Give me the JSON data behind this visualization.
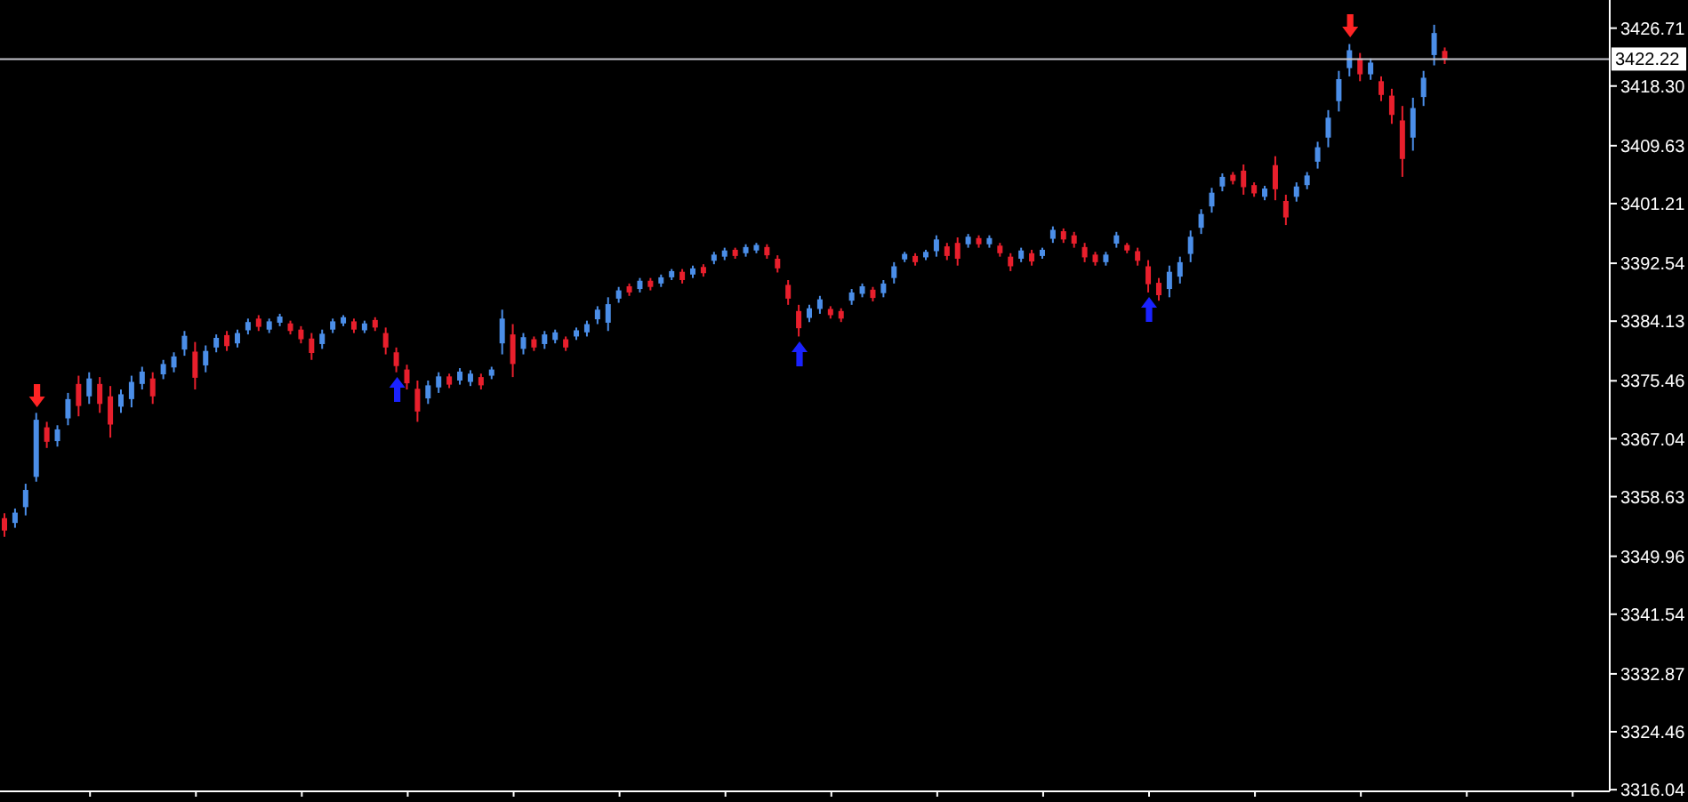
{
  "chart_data": {
    "type": "candlestick",
    "categories": [
      null,
      null,
      null,
      null,
      null,
      null,
      null,
      null,
      null,
      null,
      null,
      null,
      null,
      null,
      null,
      null,
      null,
      null,
      null,
      null,
      null,
      null,
      null,
      null,
      null,
      null,
      null,
      null,
      null,
      null,
      null,
      null,
      null,
      null,
      null,
      null,
      null,
      null,
      null,
      null,
      null,
      null,
      null,
      null,
      null,
      null,
      null,
      null,
      null,
      null,
      null,
      null,
      null,
      null,
      null,
      null,
      null,
      null,
      null,
      null,
      null,
      null,
      null,
      null,
      null,
      null,
      null,
      null,
      null,
      null,
      null,
      null,
      null,
      null,
      null,
      null,
      null,
      null,
      null,
      null,
      null,
      null,
      null,
      null,
      null,
      null,
      null,
      null,
      null,
      null,
      null,
      null,
      null,
      null,
      null,
      null,
      null,
      null,
      null,
      null,
      null,
      null,
      null,
      null,
      null,
      null,
      null,
      null,
      null,
      null,
      null,
      null,
      null,
      null,
      null,
      null,
      null,
      null,
      null,
      null,
      null,
      null,
      null,
      null,
      null,
      null,
      null,
      null,
      null,
      null,
      null,
      null,
      null,
      null,
      null,
      null,
      null,
      null,
      null,
      null,
      null,
      null,
      null,
      null,
      null,
      null,
      null,
      null,
      null,
      null,
      null,
      null
    ],
    "ohlc": [
      [
        3355.5,
        3356.2,
        3352.8,
        3353.7
      ],
      [
        3354.8,
        3356.9,
        3354.1,
        3356.3
      ],
      [
        3357.1,
        3360.5,
        3355.9,
        3359.6
      ],
      [
        3361.5,
        3370.8,
        3360.8,
        3369.8
      ],
      [
        3368.7,
        3369.5,
        3365.7,
        3366.6
      ],
      [
        3366.7,
        3369.0,
        3365.9,
        3368.4
      ],
      [
        3370.0,
        3373.7,
        3369.0,
        3372.8
      ],
      [
        3375.0,
        3376.2,
        3370.3,
        3371.8
      ],
      [
        3373.2,
        3376.7,
        3372.1,
        3375.8
      ],
      [
        3375.0,
        3376.0,
        3370.8,
        3372.1
      ],
      [
        3373.2,
        3374.7,
        3367.2,
        3369.1
      ],
      [
        3371.7,
        3374.2,
        3370.8,
        3373.5
      ],
      [
        3372.8,
        3376.2,
        3371.6,
        3375.3
      ],
      [
        3375.0,
        3377.5,
        3374.2,
        3376.8
      ],
      [
        3375.8,
        3376.7,
        3372.1,
        3373.2
      ],
      [
        3376.4,
        3378.5,
        3375.7,
        3377.9
      ],
      [
        3377.4,
        3379.6,
        3376.7,
        3379.0
      ],
      [
        3380.0,
        3382.7,
        3379.1,
        3382.0
      ],
      [
        3379.7,
        3381.1,
        3374.2,
        3375.9
      ],
      [
        3377.7,
        3380.6,
        3376.7,
        3379.8
      ],
      [
        3380.3,
        3382.2,
        3379.6,
        3381.7
      ],
      [
        3382.1,
        3382.7,
        3379.8,
        3380.5
      ],
      [
        3380.9,
        3382.9,
        3380.3,
        3382.4
      ],
      [
        3382.8,
        3384.5,
        3382.2,
        3384.0
      ],
      [
        3384.5,
        3385.0,
        3382.7,
        3383.3
      ],
      [
        3382.9,
        3384.5,
        3382.4,
        3384.1
      ],
      [
        3383.9,
        3385.2,
        3383.4,
        3384.8
      ],
      [
        3383.8,
        3384.2,
        3382.2,
        3382.7
      ],
      [
        3382.9,
        3383.4,
        3380.9,
        3381.5
      ],
      [
        3381.6,
        3382.4,
        3378.5,
        3379.5
      ],
      [
        3380.8,
        3382.9,
        3380.1,
        3382.3
      ],
      [
        3382.9,
        3384.5,
        3382.4,
        3384.1
      ],
      [
        3383.8,
        3385.0,
        3383.4,
        3384.7
      ],
      [
        3384.1,
        3384.5,
        3382.4,
        3382.9
      ],
      [
        3382.8,
        3384.2,
        3382.4,
        3383.8
      ],
      [
        3384.3,
        3384.7,
        3382.7,
        3383.2
      ],
      [
        3382.4,
        3383.2,
        3379.3,
        3380.3
      ],
      [
        3379.6,
        3380.3,
        3376.7,
        3377.6
      ],
      [
        3377.1,
        3377.8,
        3374.2,
        3375.1
      ],
      [
        3374.3,
        3375.5,
        3369.5,
        3371.0
      ],
      [
        3372.9,
        3375.5,
        3372.1,
        3374.8
      ],
      [
        3374.5,
        3376.7,
        3373.7,
        3376.1
      ],
      [
        3376.1,
        3376.5,
        3374.4,
        3374.9
      ],
      [
        3375.5,
        3377.3,
        3374.9,
        3376.8
      ],
      [
        3375.3,
        3377.0,
        3374.7,
        3376.5
      ],
      [
        3376.0,
        3376.5,
        3374.2,
        3374.8
      ],
      [
        3376.2,
        3377.5,
        3375.7,
        3377.1
      ],
      [
        3380.9,
        3385.8,
        3379.3,
        3384.5
      ],
      [
        3382.2,
        3383.7,
        3376.0,
        3377.9
      ],
      [
        3380.1,
        3382.4,
        3379.3,
        3381.8
      ],
      [
        3381.5,
        3381.9,
        3379.8,
        3380.3
      ],
      [
        3380.8,
        3382.7,
        3380.1,
        3382.2
      ],
      [
        3381.4,
        3382.9,
        3380.9,
        3382.5
      ],
      [
        3381.5,
        3381.9,
        3379.8,
        3380.3
      ],
      [
        3381.9,
        3383.2,
        3381.4,
        3382.8
      ],
      [
        3382.5,
        3384.2,
        3381.9,
        3383.7
      ],
      [
        3384.4,
        3386.3,
        3383.7,
        3385.8
      ],
      [
        3383.9,
        3387.6,
        3382.7,
        3386.6
      ],
      [
        3387.4,
        3389.1,
        3386.8,
        3388.6
      ],
      [
        3389.2,
        3389.6,
        3387.8,
        3388.3
      ],
      [
        3388.8,
        3390.4,
        3388.3,
        3390.0
      ],
      [
        3390.0,
        3390.4,
        3388.6,
        3389.1
      ],
      [
        3389.6,
        3390.9,
        3389.1,
        3390.5
      ],
      [
        3390.5,
        3391.7,
        3390.1,
        3391.4
      ],
      [
        3391.3,
        3391.7,
        3389.6,
        3390.1
      ],
      [
        3390.9,
        3392.2,
        3390.4,
        3391.8
      ],
      [
        3392.0,
        3392.4,
        3390.6,
        3391.1
      ],
      [
        3392.9,
        3394.2,
        3392.4,
        3393.8
      ],
      [
        3393.5,
        3394.8,
        3393.0,
        3394.4
      ],
      [
        3394.5,
        3394.8,
        3393.2,
        3393.6
      ],
      [
        3394.0,
        3395.3,
        3393.5,
        3394.9
      ],
      [
        3394.4,
        3395.5,
        3394.0,
        3395.2
      ],
      [
        3394.9,
        3395.3,
        3393.2,
        3393.7
      ],
      [
        3393.2,
        3393.7,
        3391.2,
        3391.8
      ],
      [
        3389.4,
        3390.1,
        3386.5,
        3387.4
      ],
      [
        3385.6,
        3386.5,
        3381.9,
        3383.1
      ],
      [
        3384.6,
        3386.5,
        3384.0,
        3386.0
      ],
      [
        3385.9,
        3387.8,
        3385.2,
        3387.3
      ],
      [
        3385.9,
        3386.3,
        3384.5,
        3385.0
      ],
      [
        3385.6,
        3386.0,
        3384.0,
        3384.5
      ],
      [
        3387.1,
        3388.8,
        3386.5,
        3388.3
      ],
      [
        3388.1,
        3389.6,
        3387.6,
        3389.2
      ],
      [
        3388.7,
        3389.1,
        3387.0,
        3387.5
      ],
      [
        3388.2,
        3390.1,
        3387.6,
        3389.6
      ],
      [
        3390.4,
        3392.7,
        3389.6,
        3392.1
      ],
      [
        3393.1,
        3394.2,
        3392.7,
        3393.9
      ],
      [
        3393.6,
        3394.0,
        3392.2,
        3392.7
      ],
      [
        3393.4,
        3394.5,
        3393.0,
        3394.2
      ],
      [
        3394.3,
        3396.6,
        3393.5,
        3396.0
      ],
      [
        3395.0,
        3395.5,
        3393.0,
        3393.6
      ],
      [
        3395.5,
        3396.3,
        3392.2,
        3393.2
      ],
      [
        3395.3,
        3396.8,
        3394.8,
        3396.4
      ],
      [
        3396.2,
        3396.6,
        3394.8,
        3395.3
      ],
      [
        3395.3,
        3396.6,
        3394.8,
        3396.2
      ],
      [
        3395.1,
        3395.5,
        3393.5,
        3394.0
      ],
      [
        3393.5,
        3394.0,
        3391.4,
        3392.1
      ],
      [
        3393.2,
        3394.8,
        3392.7,
        3394.4
      ],
      [
        3394.0,
        3394.5,
        3392.2,
        3392.8
      ],
      [
        3393.6,
        3394.8,
        3393.2,
        3394.5
      ],
      [
        3396.1,
        3397.9,
        3395.5,
        3397.4
      ],
      [
        3397.2,
        3397.6,
        3395.5,
        3396.0
      ],
      [
        3396.6,
        3397.1,
        3394.8,
        3395.4
      ],
      [
        3394.9,
        3395.5,
        3392.7,
        3393.4
      ],
      [
        3393.8,
        3394.2,
        3392.2,
        3392.7
      ],
      [
        3392.7,
        3394.2,
        3392.2,
        3393.8
      ],
      [
        3395.4,
        3397.1,
        3394.8,
        3396.6
      ],
      [
        3395.2,
        3395.5,
        3394.0,
        3394.4
      ],
      [
        3394.3,
        3394.8,
        3392.2,
        3392.9
      ],
      [
        3392.1,
        3393.0,
        3388.3,
        3389.5
      ],
      [
        3389.7,
        3390.4,
        3387.1,
        3387.9
      ],
      [
        3388.8,
        3392.2,
        3387.6,
        3391.3
      ],
      [
        3390.6,
        3393.5,
        3389.6,
        3392.7
      ],
      [
        3393.9,
        3397.3,
        3392.7,
        3396.4
      ],
      [
        3397.7,
        3400.4,
        3396.8,
        3399.7
      ],
      [
        3400.8,
        3403.5,
        3399.9,
        3402.8
      ],
      [
        3403.7,
        3405.6,
        3403.0,
        3405.1
      ],
      [
        3405.4,
        3405.8,
        3404.0,
        3404.5
      ],
      [
        3406.0,
        3406.9,
        3402.5,
        3403.6
      ],
      [
        3403.9,
        3404.3,
        3402.2,
        3402.7
      ],
      [
        3402.2,
        3403.8,
        3401.7,
        3403.4
      ],
      [
        3406.8,
        3408.1,
        3401.7,
        3403.3
      ],
      [
        3401.6,
        3402.5,
        3398.1,
        3399.2
      ],
      [
        3402.2,
        3404.3,
        3401.5,
        3403.7
      ],
      [
        3403.9,
        3405.8,
        3403.3,
        3405.3
      ],
      [
        3407.3,
        3410.2,
        3406.3,
        3409.4
      ],
      [
        3410.8,
        3414.8,
        3409.4,
        3413.7
      ],
      [
        3416.1,
        3420.5,
        3414.6,
        3419.3
      ],
      [
        3420.9,
        3424.4,
        3419.7,
        3423.5
      ],
      [
        3422.3,
        3423.1,
        3419.0,
        3420.0
      ],
      [
        3420.0,
        3422.3,
        3419.2,
        3421.7
      ],
      [
        3419.0,
        3419.7,
        3416.1,
        3417.0
      ],
      [
        3416.9,
        3417.9,
        3412.8,
        3414.1
      ],
      [
        3413.3,
        3415.4,
        3405.1,
        3407.7
      ],
      [
        3410.8,
        3416.6,
        3408.9,
        3415.1
      ],
      [
        3416.7,
        3420.5,
        3415.4,
        3419.5
      ],
      [
        3422.8,
        3427.2,
        3421.3,
        3426.0
      ],
      [
        3423.4,
        3423.9,
        3421.5,
        3422.2
      ],
      null,
      null,
      null,
      null,
      null,
      null,
      null,
      null,
      null,
      null,
      null,
      null,
      null,
      null,
      null
    ],
    "colors": [
      "#e81f2c",
      "#4b8ee8",
      "#4b8ee8",
      "#4b8ee8",
      "#e81f2c",
      "#4b8ee8",
      "#4b8ee8",
      "#e81f2c",
      "#4b8ee8",
      "#e81f2c",
      "#e81f2c",
      "#4b8ee8",
      "#4b8ee8",
      "#4b8ee8",
      "#e81f2c",
      "#4b8ee8",
      "#4b8ee8",
      "#4b8ee8",
      "#e81f2c",
      "#4b8ee8",
      "#4b8ee8",
      "#e81f2c",
      "#4b8ee8",
      "#4b8ee8",
      "#e81f2c",
      "#4b8ee8",
      "#4b8ee8",
      "#e81f2c",
      "#e81f2c",
      "#e81f2c",
      "#4b8ee8",
      "#4b8ee8",
      "#4b8ee8",
      "#e81f2c",
      "#4b8ee8",
      "#e81f2c",
      "#e81f2c",
      "#e81f2c",
      "#e81f2c",
      "#e81f2c",
      "#4b8ee8",
      "#4b8ee8",
      "#e81f2c",
      "#4b8ee8",
      "#4b8ee8",
      "#e81f2c",
      "#4b8ee8",
      "#4b8ee8",
      "#e81f2c",
      "#4b8ee8",
      "#e81f2c",
      "#4b8ee8",
      "#4b8ee8",
      "#e81f2c",
      "#4b8ee8",
      "#4b8ee8",
      "#4b8ee8",
      "#4b8ee8",
      "#4b8ee8",
      "#e81f2c",
      "#4b8ee8",
      "#e81f2c",
      "#4b8ee8",
      "#4b8ee8",
      "#e81f2c",
      "#4b8ee8",
      "#e81f2c",
      "#4b8ee8",
      "#4b8ee8",
      "#e81f2c",
      "#4b8ee8",
      "#4b8ee8",
      "#e81f2c",
      "#e81f2c",
      "#e81f2c",
      "#e81f2c",
      "#4b8ee8",
      "#4b8ee8",
      "#e81f2c",
      "#e81f2c",
      "#4b8ee8",
      "#4b8ee8",
      "#e81f2c",
      "#4b8ee8",
      "#4b8ee8",
      "#4b8ee8",
      "#e81f2c",
      "#4b8ee8",
      "#4b8ee8",
      "#e81f2c",
      "#e81f2c",
      "#4b8ee8",
      "#e81f2c",
      "#4b8ee8",
      "#e81f2c",
      "#e81f2c",
      "#4b8ee8",
      "#e81f2c",
      "#4b8ee8",
      "#4b8ee8",
      "#e81f2c",
      "#e81f2c",
      "#e81f2c",
      "#e81f2c",
      "#4b8ee8",
      "#4b8ee8",
      "#e81f2c",
      "#e81f2c",
      "#e81f2c",
      "#e81f2c",
      "#4b8ee8",
      "#4b8ee8",
      "#4b8ee8",
      "#4b8ee8",
      "#4b8ee8",
      "#4b8ee8",
      "#e81f2c",
      "#e81f2c",
      "#e81f2c",
      "#4b8ee8",
      "#e81f2c",
      "#e81f2c",
      "#4b8ee8",
      "#4b8ee8",
      "#4b8ee8",
      "#4b8ee8",
      "#4b8ee8",
      "#4b8ee8",
      "#e81f2c",
      "#4b8ee8",
      "#e81f2c",
      "#e81f2c",
      "#e81f2c",
      "#4b8ee8",
      "#4b8ee8",
      "#4b8ee8",
      "#e81f2c",
      null,
      null,
      null,
      null,
      null,
      null,
      null,
      null,
      null,
      null,
      null,
      null,
      null,
      null,
      null
    ],
    "ylim": [
      3315.8,
      3430.8
    ],
    "yticks": [
      3316.04,
      3324.46,
      3332.87,
      3341.54,
      3349.96,
      3358.63,
      3367.04,
      3375.46,
      3384.13,
      3392.54,
      3401.21,
      3409.63,
      {
        "value": 3418.3,
        "label": "3418.30"
      },
      3426.71
    ],
    "ref_lines": [
      {
        "axis": "y",
        "value": 3422.22,
        "label": "3422.22",
        "color": "#c4c4cc"
      }
    ],
    "tick_labels": "y"
  }
}
